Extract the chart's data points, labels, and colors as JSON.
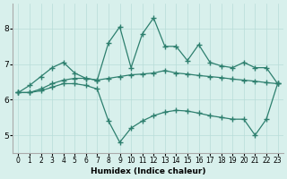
{
  "x": [
    0,
    1,
    2,
    3,
    4,
    5,
    6,
    7,
    8,
    9,
    10,
    11,
    12,
    13,
    14,
    15,
    16,
    17,
    18,
    19,
    20,
    21,
    22,
    23
  ],
  "line1": [
    6.2,
    6.4,
    6.65,
    6.9,
    7.05,
    6.75,
    6.6,
    6.55,
    7.6,
    8.05,
    6.9,
    7.85,
    8.3,
    7.5,
    7.5,
    7.1,
    7.55,
    7.05,
    6.95,
    6.9,
    7.05,
    6.9,
    6.9,
    6.45
  ],
  "line2": [
    6.2,
    6.2,
    6.3,
    6.45,
    6.55,
    6.6,
    6.6,
    6.55,
    6.6,
    6.65,
    6.7,
    6.72,
    6.75,
    6.82,
    6.75,
    6.72,
    6.68,
    6.65,
    6.62,
    6.58,
    6.55,
    6.52,
    6.48,
    6.45
  ],
  "line3": [
    6.2,
    6.2,
    6.25,
    6.35,
    6.45,
    6.45,
    6.4,
    6.3,
    5.4,
    4.8,
    5.2,
    5.4,
    5.55,
    5.65,
    5.7,
    5.68,
    5.62,
    5.55,
    5.5,
    5.45,
    5.45,
    5.0,
    5.45,
    6.45
  ],
  "line_color": "#2d7f6e",
  "bg_color": "#d8f0ec",
  "grid_color": "#b8ddd8",
  "xlabel": "Humidex (Indice chaleur)",
  "xlim": [
    -0.5,
    23.5
  ],
  "ylim": [
    4.5,
    8.7
  ],
  "yticks": [
    5,
    6,
    7,
    8
  ],
  "xticks": [
    0,
    1,
    2,
    3,
    4,
    5,
    6,
    7,
    8,
    9,
    10,
    11,
    12,
    13,
    14,
    15,
    16,
    17,
    18,
    19,
    20,
    21,
    22,
    23
  ],
  "marker": "+",
  "markersize": 4,
  "linewidth": 0.9,
  "tick_fontsize_x": 5.5,
  "tick_fontsize_y": 6.5,
  "xlabel_fontsize": 6.5
}
